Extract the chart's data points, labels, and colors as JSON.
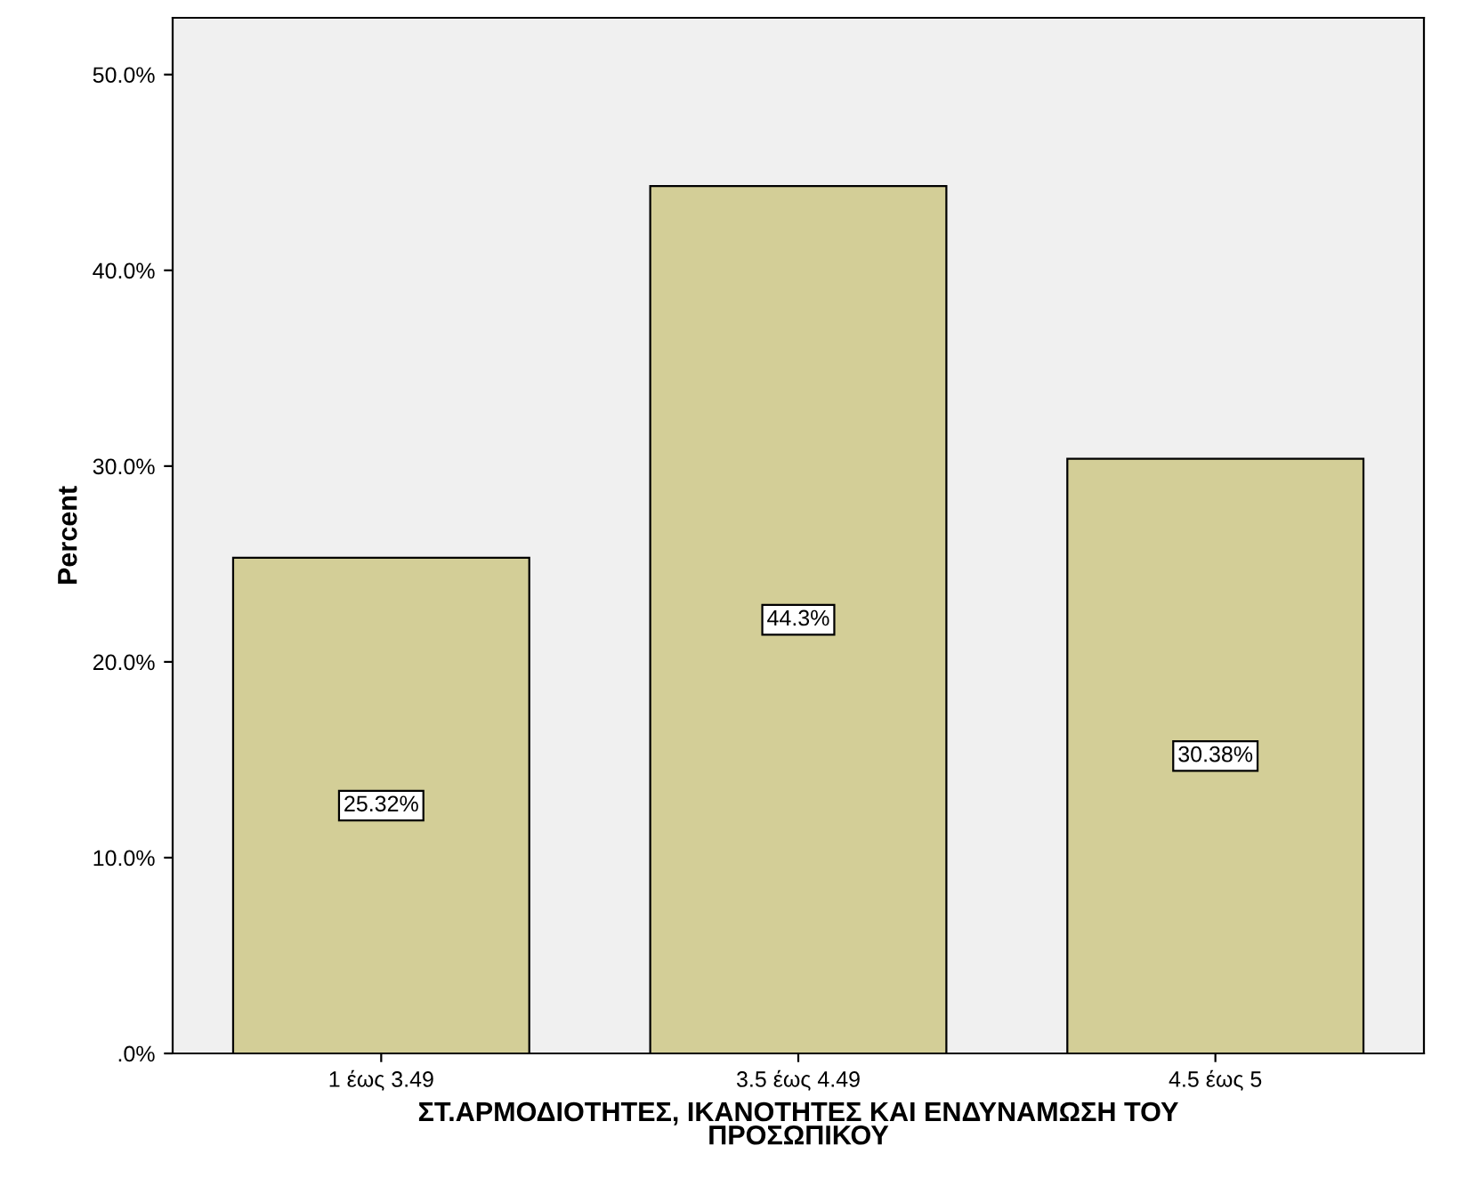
{
  "chart_data": {
    "type": "bar",
    "xlabel": "ΣΤ.ΑΡΜΟΔΙΟΤΗΤΕΣ, ΙΚΑΝΟΤΗΤΕΣ ΚΑΙ ΕΝΔΥΝΑΜΩΣΗ ΤΟΥ\nΠΡΟΣΩΠΙΚΟΥ",
    "ylabel": "Percent",
    "categories": [
      "1 έως 3.49",
      "3.5 έως 4.49",
      "4.5 έως 5"
    ],
    "values": [
      25.32,
      44.3,
      30.38
    ],
    "value_labels": [
      "25.32%",
      "44.3%",
      "30.38%"
    ],
    "color": "#d3ce97",
    "ylim": [
      0,
      52.9
    ],
    "yticks": [
      {
        "value": 0,
        "label": ".0%"
      },
      {
        "value": 10,
        "label": "10.0%"
      },
      {
        "value": 20,
        "label": "20.0%"
      },
      {
        "value": 30,
        "label": "30.0%"
      },
      {
        "value": 40,
        "label": "40.0%"
      },
      {
        "value": 50,
        "label": "50.0%"
      }
    ],
    "grid": false
  }
}
